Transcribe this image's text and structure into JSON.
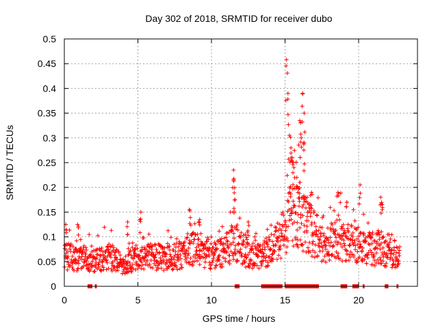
{
  "chart_data": {
    "type": "scatter",
    "title": "Day 302 of 2018, SRMTID for receiver dubo",
    "xlabel": "GPS time / hours",
    "ylabel": "SRMTID / TECUs",
    "xlim": [
      0,
      24
    ],
    "ylim": [
      0,
      0.5
    ],
    "xticks": [
      0,
      5,
      10,
      15,
      20
    ],
    "xtick_labels": [
      "0",
      "5",
      "10",
      "15",
      "20"
    ],
    "yticks": [
      0,
      0.05,
      0.1,
      0.15,
      0.2,
      0.25,
      0.3,
      0.35,
      0.4,
      0.45,
      0.5
    ],
    "ytick_labels": [
      "0",
      "0.05",
      "0.1",
      "0.15",
      "0.2",
      "0.25",
      "0.3",
      "0.35",
      "0.4",
      "0.45",
      "0.5"
    ],
    "grid": true,
    "marker": "+",
    "color": "#ff0000",
    "data_range_hours": [
      0,
      22.8
    ],
    "series": [
      {
        "name": "SRMTID",
        "profile": [
          {
            "x": 0.0,
            "y": 0.06
          },
          {
            "x": 1.0,
            "y": 0.055
          },
          {
            "x": 2.0,
            "y": 0.05
          },
          {
            "x": 3.0,
            "y": 0.06
          },
          {
            "x": 4.0,
            "y": 0.045
          },
          {
            "x": 5.0,
            "y": 0.055
          },
          {
            "x": 6.0,
            "y": 0.06
          },
          {
            "x": 7.0,
            "y": 0.055
          },
          {
            "x": 8.0,
            "y": 0.065
          },
          {
            "x": 8.5,
            "y": 0.08
          },
          {
            "x": 9.0,
            "y": 0.075
          },
          {
            "x": 10.0,
            "y": 0.06
          },
          {
            "x": 11.0,
            "y": 0.07
          },
          {
            "x": 11.6,
            "y": 0.095
          },
          {
            "x": 12.0,
            "y": 0.075
          },
          {
            "x": 13.0,
            "y": 0.06
          },
          {
            "x": 14.0,
            "y": 0.07
          },
          {
            "x": 14.6,
            "y": 0.1
          },
          {
            "x": 15.0,
            "y": 0.11
          },
          {
            "x": 15.4,
            "y": 0.15
          },
          {
            "x": 15.8,
            "y": 0.14
          },
          {
            "x": 16.2,
            "y": 0.13
          },
          {
            "x": 16.8,
            "y": 0.11
          },
          {
            "x": 17.5,
            "y": 0.09
          },
          {
            "x": 18.0,
            "y": 0.08
          },
          {
            "x": 18.6,
            "y": 0.1
          },
          {
            "x": 19.0,
            "y": 0.09
          },
          {
            "x": 20.0,
            "y": 0.085
          },
          {
            "x": 21.0,
            "y": 0.075
          },
          {
            "x": 22.0,
            "y": 0.07
          },
          {
            "x": 22.8,
            "y": 0.065
          }
        ],
        "peaks": [
          {
            "x": 0.1,
            "y": 0.125
          },
          {
            "x": 0.9,
            "y": 0.125
          },
          {
            "x": 4.3,
            "y": 0.13
          },
          {
            "x": 5.2,
            "y": 0.15
          },
          {
            "x": 8.5,
            "y": 0.155
          },
          {
            "x": 9.2,
            "y": 0.135
          },
          {
            "x": 11.5,
            "y": 0.235
          },
          {
            "x": 11.5,
            "y": 0.215
          },
          {
            "x": 11.6,
            "y": 0.175
          },
          {
            "x": 12.5,
            "y": 0.13
          },
          {
            "x": 15.1,
            "y": 0.458
          },
          {
            "x": 15.2,
            "y": 0.39
          },
          {
            "x": 15.3,
            "y": 0.305
          },
          {
            "x": 15.4,
            "y": 0.28
          },
          {
            "x": 15.5,
            "y": 0.26
          },
          {
            "x": 15.6,
            "y": 0.24
          },
          {
            "x": 15.8,
            "y": 0.22
          },
          {
            "x": 16.0,
            "y": 0.21
          },
          {
            "x": 16.1,
            "y": 0.3
          },
          {
            "x": 16.2,
            "y": 0.39
          },
          {
            "x": 16.3,
            "y": 0.35
          },
          {
            "x": 16.3,
            "y": 0.29
          },
          {
            "x": 16.0,
            "y": 0.335
          },
          {
            "x": 16.5,
            "y": 0.18
          },
          {
            "x": 16.8,
            "y": 0.19
          },
          {
            "x": 18.6,
            "y": 0.19
          },
          {
            "x": 19.2,
            "y": 0.17
          },
          {
            "x": 20.1,
            "y": 0.205
          },
          {
            "x": 21.5,
            "y": 0.18
          },
          {
            "x": 21.6,
            "y": 0.165
          }
        ],
        "zero_clusters": [
          [
            1.6,
            1.9
          ],
          [
            2.1,
            2.2
          ],
          [
            11.6,
            11.9
          ],
          [
            13.4,
            14.8
          ],
          [
            15.0,
            17.3
          ],
          [
            18.8,
            19.2
          ],
          [
            19.6,
            20.0
          ],
          [
            20.3,
            20.4
          ],
          [
            21.8,
            22.0
          ],
          [
            22.6,
            22.7
          ]
        ]
      }
    ]
  }
}
